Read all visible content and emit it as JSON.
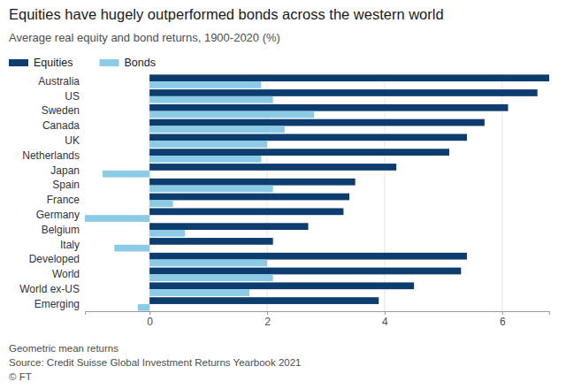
{
  "chart_data": {
    "type": "bar",
    "orientation": "horizontal",
    "title": "Equities have hugely outperformed bonds across the western world",
    "subtitle": "Average real equity and bond returns, 1900-2020 (%)",
    "categories": [
      "Australia",
      "US",
      "Sweden",
      "Canada",
      "UK",
      "Netherlands",
      "Japan",
      "Spain",
      "France",
      "Germany",
      "Belgium",
      "Italy",
      "Developed",
      "World",
      "World ex-US",
      "Emerging"
    ],
    "series": [
      {
        "name": "Equities",
        "color": "#0d3d6e",
        "values": [
          6.8,
          6.6,
          6.1,
          5.7,
          5.4,
          5.1,
          4.2,
          3.5,
          3.4,
          3.3,
          2.7,
          2.1,
          5.4,
          5.3,
          4.5,
          3.9
        ]
      },
      {
        "name": "Bonds",
        "color": "#8ccbe6",
        "values": [
          1.9,
          2.1,
          2.8,
          2.3,
          2.0,
          1.9,
          -0.8,
          2.1,
          0.4,
          -1.1,
          0.6,
          -0.6,
          2.0,
          2.1,
          1.7,
          -0.2
        ]
      }
    ],
    "xlim": [
      -1.1,
      6.8
    ],
    "xticks": [
      0,
      2,
      4,
      6
    ],
    "grid": true,
    "legend": "top-left",
    "annotations": [
      "Geometric mean returns",
      "Source: Credit Suisse Global Investment Returns Yearbook 2021",
      "© FT"
    ]
  }
}
